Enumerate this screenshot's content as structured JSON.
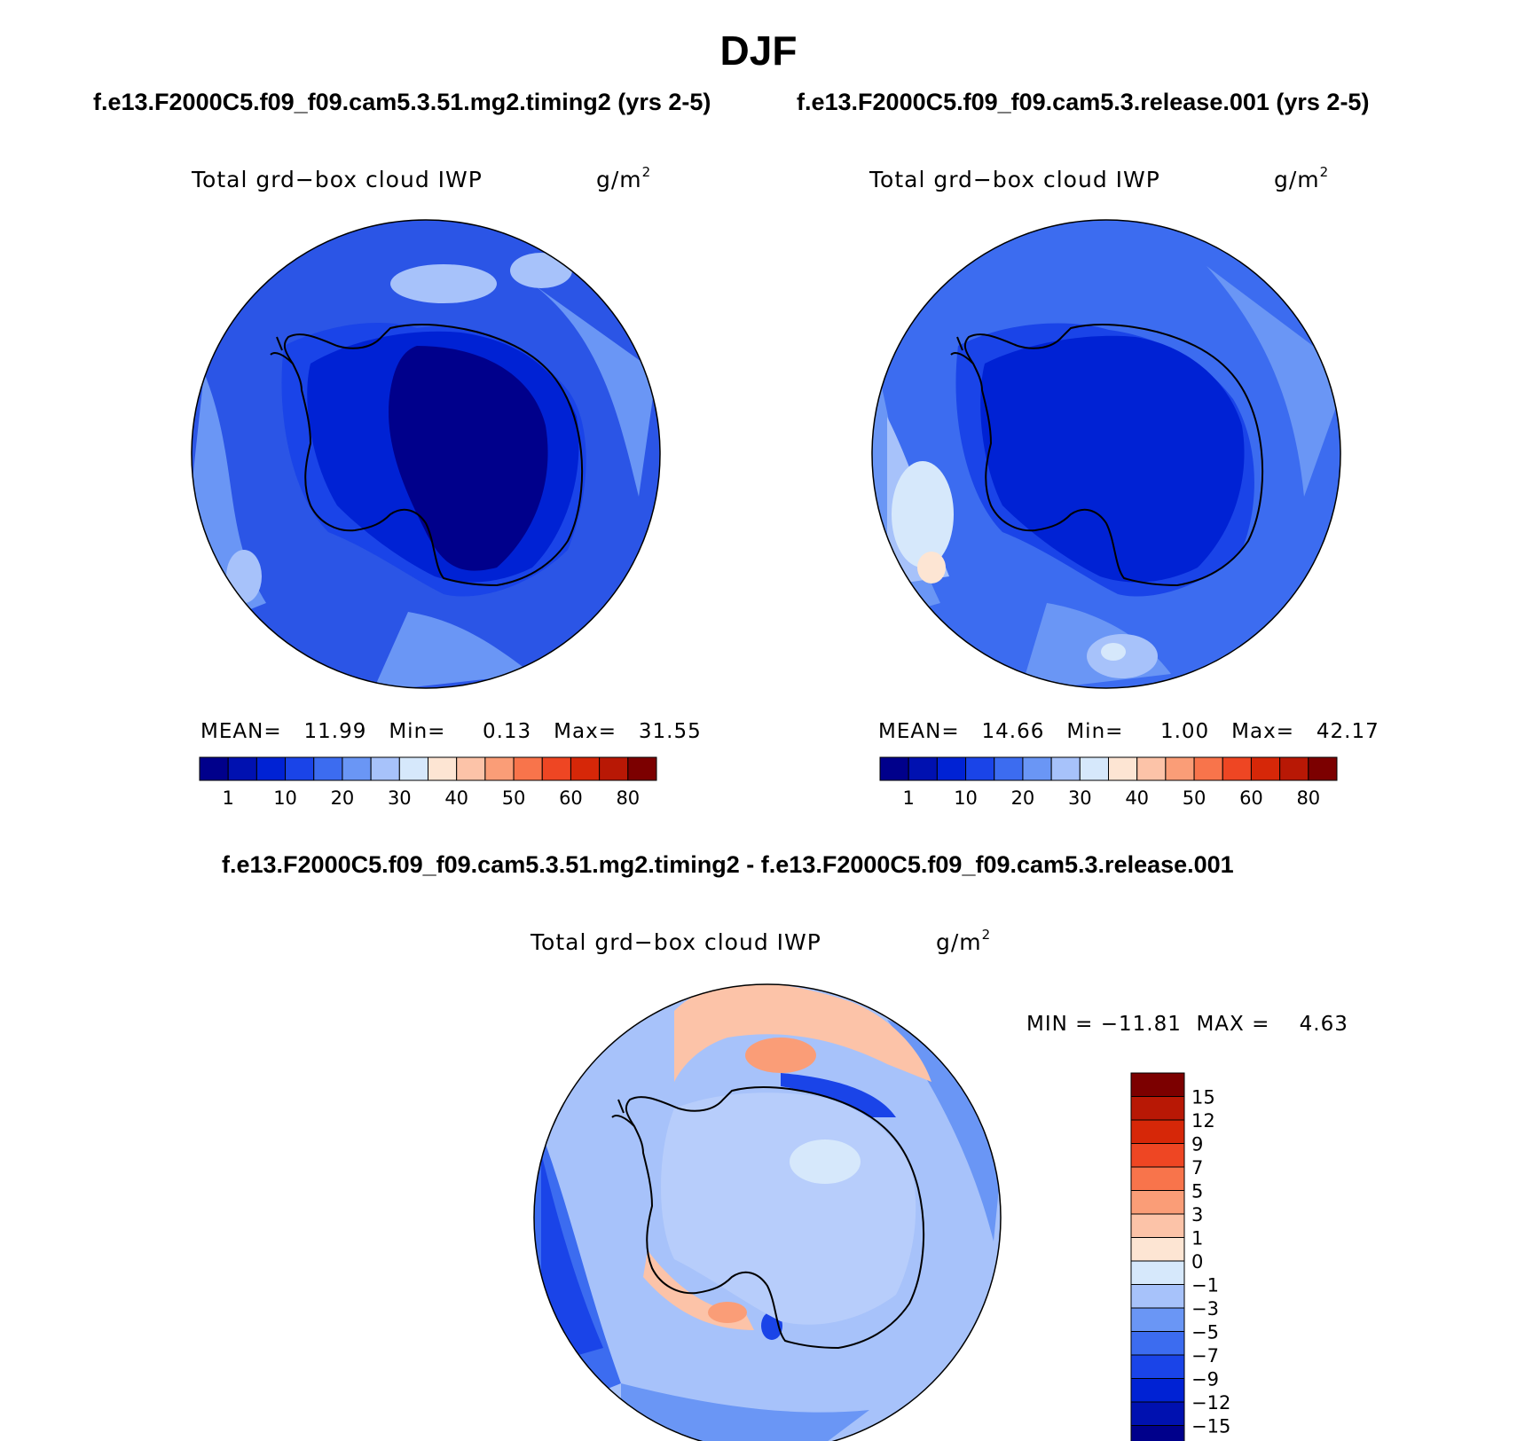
{
  "title": "DJF",
  "panels": [
    {
      "case_title": "f.e13.F2000C5.f09_f09.cam5.3.51.mg2.timing2 (yrs 2-5)",
      "variable": "Total grd−box cloud IWP",
      "units_base": "g/m",
      "units_exp": "2",
      "stats": {
        "mean_label": "MEAN=",
        "mean": "11.99",
        "min_label": "Min=",
        "min": "0.13",
        "max_label": "Max=",
        "max": "31.55"
      }
    },
    {
      "case_title": "f.e13.F2000C5.f09_f09.cam5.3.release.001 (yrs 2-5)",
      "variable": "Total grd−box cloud IWP",
      "units_base": "g/m",
      "units_exp": "2",
      "stats": {
        "mean_label": "MEAN=",
        "mean": "14.66",
        "min_label": "Min=",
        "min": "1.00",
        "max_label": "Max=",
        "max": "42.17"
      }
    }
  ],
  "diff_panel": {
    "case_title": "f.e13.F2000C5.f09_f09.cam5.3.51.mg2.timing2 - f.e13.F2000C5.f09_f09.cam5.3.release.001",
    "variable": "Total grd−box cloud IWP",
    "units_base": "g/m",
    "units_exp": "2",
    "minmax": "MIN = −11.81  MAX =    4.63"
  },
  "colorbar_abs": {
    "labels": [
      "1",
      "10",
      "20",
      "30",
      "40",
      "50",
      "60",
      "80"
    ],
    "colors": [
      "#00008b",
      "#0011b0",
      "#0022d4",
      "#1a44e8",
      "#3c6cf0",
      "#6a96f5",
      "#a7c2fa",
      "#d6e8fb",
      "#fde5d3",
      "#fcc3a8",
      "#fa9d77",
      "#f8744b",
      "#ee4623",
      "#d62708",
      "#b81805",
      "#7c0000"
    ]
  },
  "colorbar_diff": {
    "labels": [
      "15",
      "12",
      "9",
      "7",
      "5",
      "3",
      "1",
      "0",
      "−1",
      "−3",
      "−5",
      "−7",
      "−9",
      "−12",
      "−15"
    ],
    "colors": [
      "#7c0000",
      "#b81805",
      "#d62708",
      "#ee4623",
      "#f8744b",
      "#fa9d77",
      "#fcc3a8",
      "#fde5d3",
      "#d6e8fb",
      "#a7c2fa",
      "#6a96f5",
      "#3c6cf0",
      "#1a44e8",
      "#0022d4",
      "#0011b0",
      "#00008b"
    ]
  }
}
